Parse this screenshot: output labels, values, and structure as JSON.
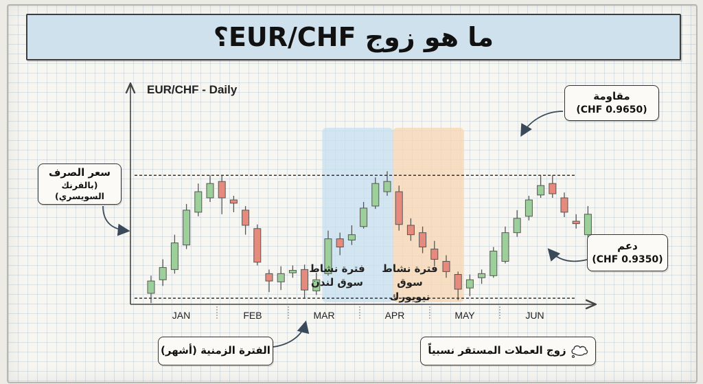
{
  "title": "ما هو زوج EUR/CHF؟",
  "chart_title": "EUR/CHF - Daily",
  "labels": {
    "price_line1": "سعر الصرف",
    "price_line2": "(بالفرنك السويسري)",
    "resistance_line1": "مقاومة",
    "resistance_line2": "(CHF 0.9650)",
    "support_line1": "دعم",
    "support_line2": "(CHF 0.9350)",
    "time_period": "الفترة الزمنية (أشهر)",
    "stable_pair": "زوج العملات المستقر نسبياً",
    "london_line1": "فترة نشاط",
    "london_line2": "سوق لندن",
    "newyork_line1": "فترة نشاط",
    "newyork_line2": "سوق نيويورك"
  },
  "colors": {
    "bullish": "#9ccf9a",
    "bearish": "#e58a7c",
    "london_zone": "#c6dff0",
    "newyork_zone": "#f7d6b2",
    "banner": "#cfe1ec"
  },
  "chart_data": {
    "type": "candlestick",
    "title": "EUR/CHF - Daily",
    "xlabel": "",
    "ylabel": "",
    "categories": [
      "JAN",
      "FEB",
      "MAR",
      "APR",
      "MAY",
      "JUN"
    ],
    "ylim": [
      0.932,
      0.986
    ],
    "resistance": 0.965,
    "support": 0.935,
    "grid": true,
    "candles": [
      {
        "o": 0.9362,
        "c": 0.9392,
        "h": 0.9405,
        "l": 0.9338
      },
      {
        "o": 0.9395,
        "c": 0.9425,
        "h": 0.9445,
        "l": 0.938
      },
      {
        "o": 0.942,
        "c": 0.9485,
        "h": 0.9505,
        "l": 0.941
      },
      {
        "o": 0.948,
        "c": 0.9565,
        "h": 0.958,
        "l": 0.947
      },
      {
        "o": 0.956,
        "c": 0.961,
        "h": 0.963,
        "l": 0.955
      },
      {
        "o": 0.9595,
        "c": 0.963,
        "h": 0.965,
        "l": 0.9585
      },
      {
        "o": 0.9635,
        "c": 0.9595,
        "h": 0.965,
        "l": 0.9555
      },
      {
        "o": 0.959,
        "c": 0.9582,
        "h": 0.96,
        "l": 0.956
      },
      {
        "o": 0.9565,
        "c": 0.9528,
        "h": 0.9575,
        "l": 0.9505
      },
      {
        "o": 0.952,
        "c": 0.9438,
        "h": 0.953,
        "l": 0.943
      },
      {
        "o": 0.941,
        "c": 0.9392,
        "h": 0.942,
        "l": 0.9365
      },
      {
        "o": 0.939,
        "c": 0.941,
        "h": 0.9428,
        "l": 0.937
      },
      {
        "o": 0.9412,
        "c": 0.9418,
        "h": 0.943,
        "l": 0.94
      },
      {
        "o": 0.942,
        "c": 0.937,
        "h": 0.9432,
        "l": 0.935
      },
      {
        "o": 0.9368,
        "c": 0.9395,
        "h": 0.9412,
        "l": 0.9358
      },
      {
        "o": 0.941,
        "c": 0.9495,
        "h": 0.9515,
        "l": 0.9405
      },
      {
        "o": 0.9495,
        "c": 0.9475,
        "h": 0.951,
        "l": 0.9455
      },
      {
        "o": 0.9492,
        "c": 0.9505,
        "h": 0.9528,
        "l": 0.948
      },
      {
        "o": 0.9525,
        "c": 0.957,
        "h": 0.9585,
        "l": 0.952
      },
      {
        "o": 0.9575,
        "c": 0.963,
        "h": 0.9645,
        "l": 0.9568
      },
      {
        "o": 0.961,
        "c": 0.9635,
        "h": 0.966,
        "l": 0.96
      },
      {
        "o": 0.961,
        "c": 0.953,
        "h": 0.9625,
        "l": 0.9515
      },
      {
        "o": 0.9528,
        "c": 0.9505,
        "h": 0.9545,
        "l": 0.949
      },
      {
        "o": 0.951,
        "c": 0.9475,
        "h": 0.9525,
        "l": 0.946
      },
      {
        "o": 0.947,
        "c": 0.9445,
        "h": 0.949,
        "l": 0.943
      },
      {
        "o": 0.944,
        "c": 0.9415,
        "h": 0.9455,
        "l": 0.94
      },
      {
        "o": 0.9408,
        "c": 0.9372,
        "h": 0.9415,
        "l": 0.9345
      },
      {
        "o": 0.9375,
        "c": 0.9395,
        "h": 0.9408,
        "l": 0.9355
      },
      {
        "o": 0.94,
        "c": 0.941,
        "h": 0.942,
        "l": 0.9385
      },
      {
        "o": 0.9405,
        "c": 0.9465,
        "h": 0.9475,
        "l": 0.94
      },
      {
        "o": 0.944,
        "c": 0.951,
        "h": 0.9525,
        "l": 0.9435
      },
      {
        "o": 0.951,
        "c": 0.9545,
        "h": 0.9565,
        "l": 0.95
      },
      {
        "o": 0.955,
        "c": 0.959,
        "h": 0.96,
        "l": 0.954
      },
      {
        "o": 0.9602,
        "c": 0.9625,
        "h": 0.965,
        "l": 0.9595
      },
      {
        "o": 0.963,
        "c": 0.9605,
        "h": 0.965,
        "l": 0.9595
      },
      {
        "o": 0.9595,
        "c": 0.956,
        "h": 0.9608,
        "l": 0.9548
      },
      {
        "o": 0.9538,
        "c": 0.9532,
        "h": 0.9555,
        "l": 0.952
      },
      {
        "o": 0.9505,
        "c": 0.9555,
        "h": 0.9575,
        "l": 0.949
      }
    ],
    "zones": [
      {
        "name": "london",
        "from": 14.5,
        "to": 20.5
      },
      {
        "name": "newyork",
        "from": 20.5,
        "to": 26.5
      }
    ]
  }
}
